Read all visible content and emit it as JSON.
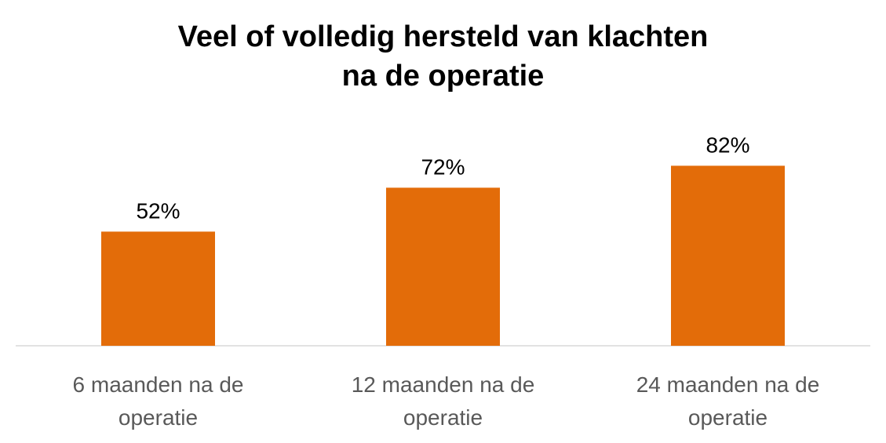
{
  "chart_data": {
    "type": "bar",
    "title_lines": [
      "Veel of volledig hersteld van klachten",
      "na de operatie"
    ],
    "categories": [
      [
        "6 maanden na de",
        "operatie"
      ],
      [
        "12 maanden na de",
        "operatie"
      ],
      [
        "24 maanden na de",
        "operatie"
      ]
    ],
    "values": [
      52,
      72,
      82
    ],
    "data_labels": [
      "52%",
      "72%",
      "82%"
    ],
    "ylim": [
      0,
      100
    ],
    "grid": false,
    "legend": "none",
    "bar_color": "#E36C09",
    "axis_color": "#D9D9D9"
  }
}
